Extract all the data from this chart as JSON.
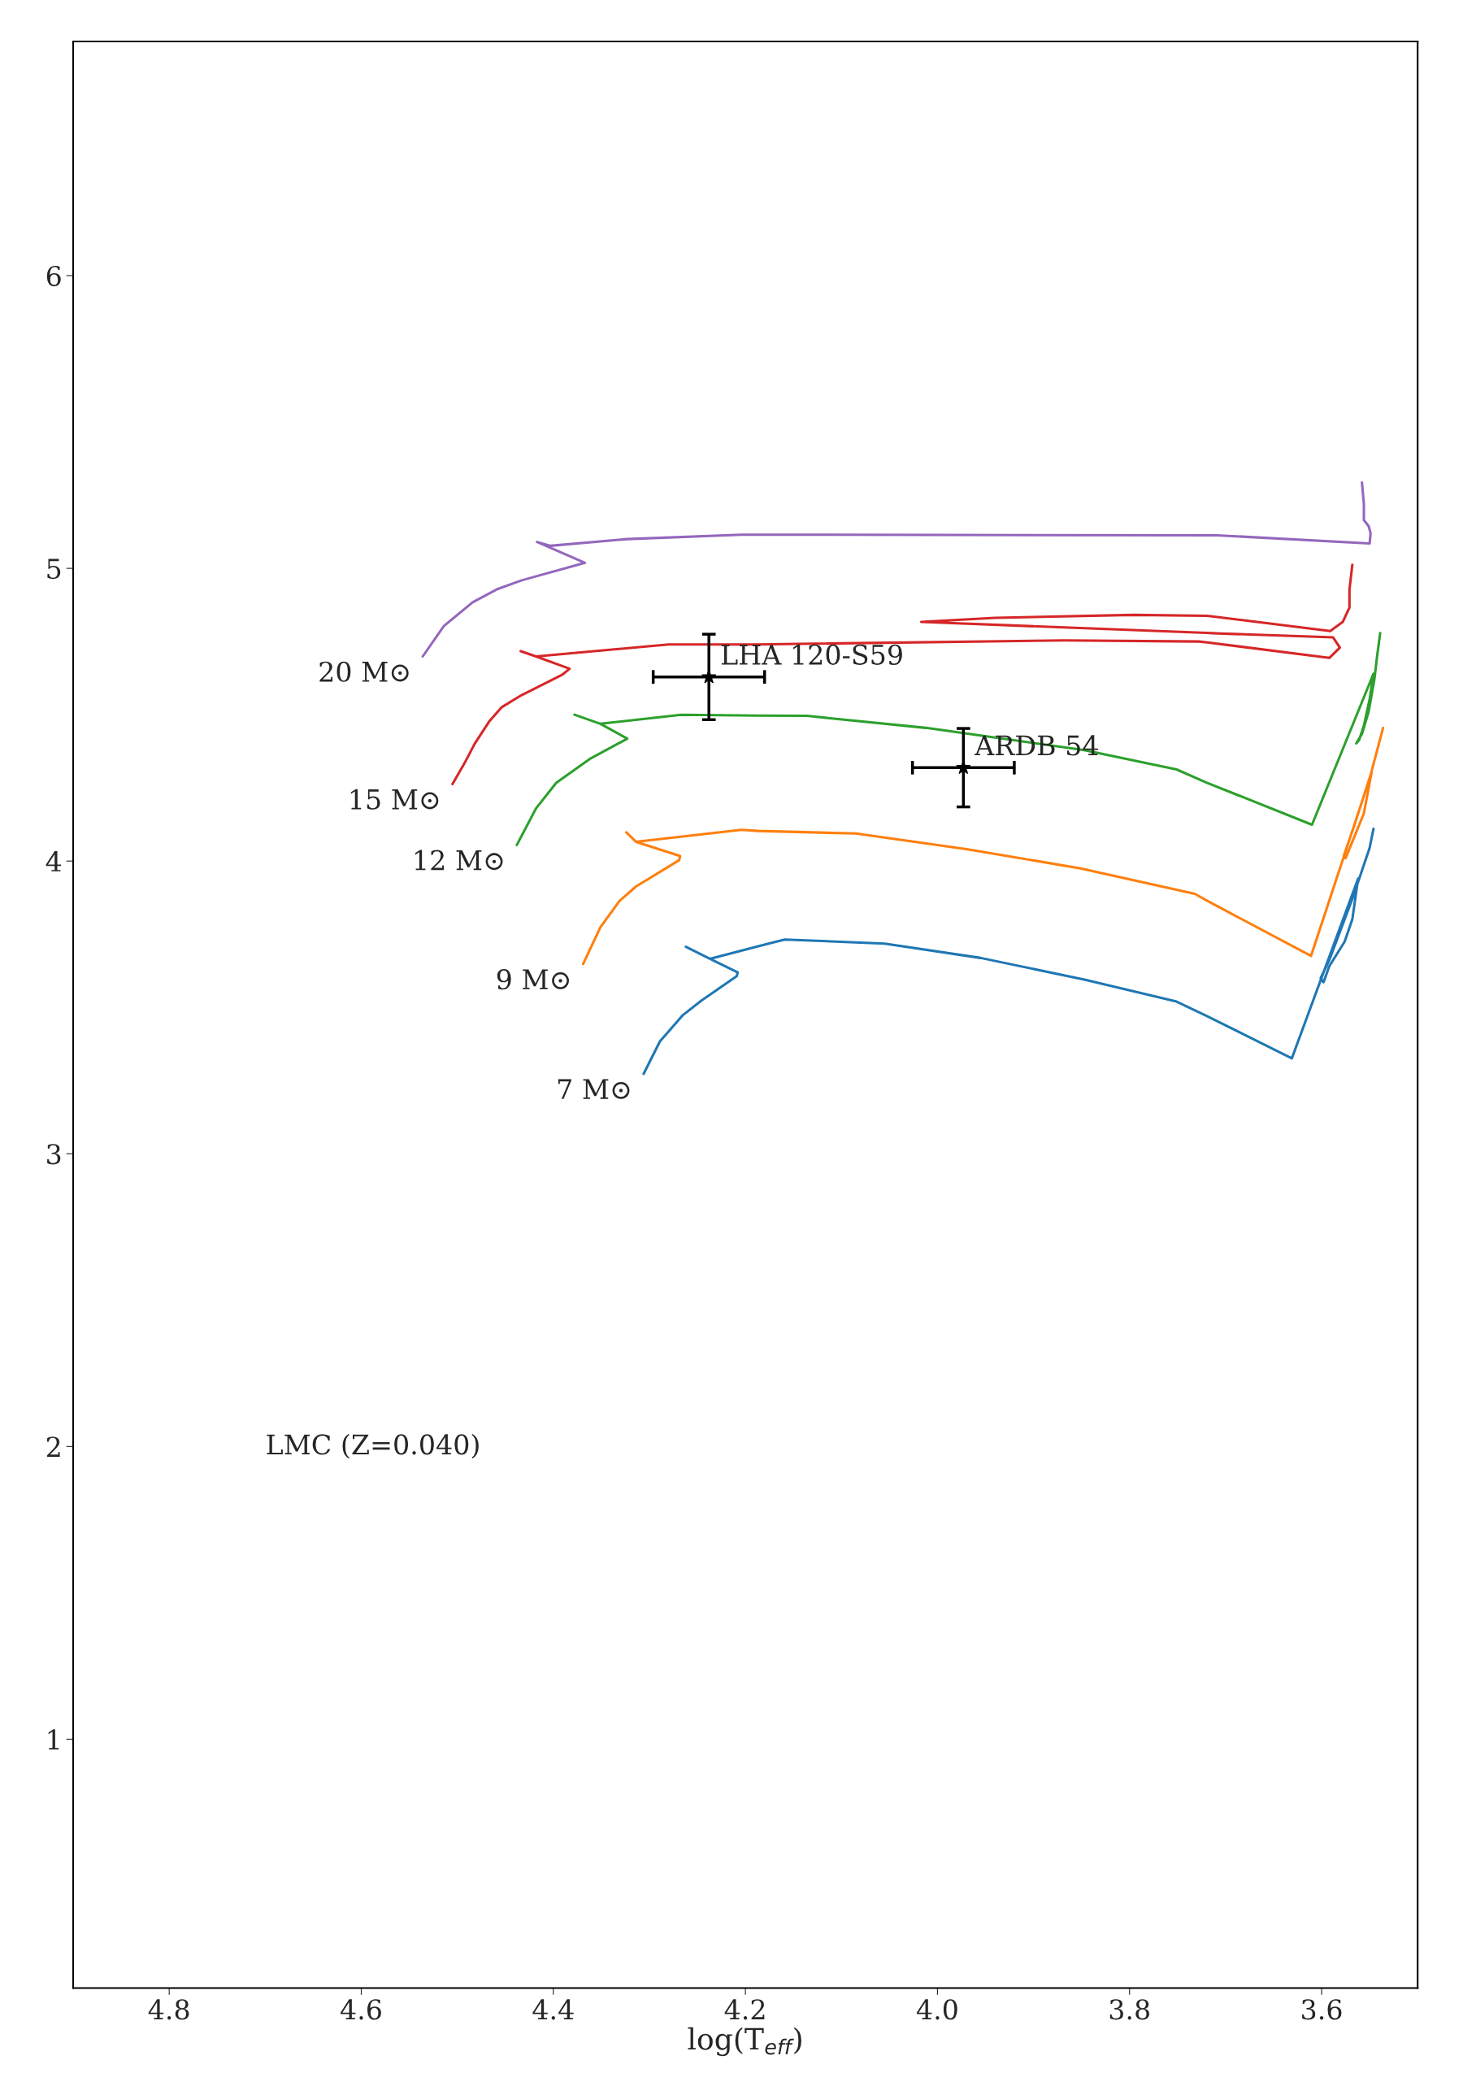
{
  "chart_data": {
    "type": "line",
    "xlabel": "log(T$_{eff}$)",
    "xlim": [
      4.9,
      3.5
    ],
    "ylim": [
      0.15,
      6.8
    ],
    "xticks": [
      4.8,
      4.6,
      4.4,
      4.2,
      {
        "value": 4,
        "label": "4.0"
      },
      3.8,
      3.6
    ],
    "yticks": [
      1,
      2,
      3,
      4,
      5,
      6
    ],
    "grid": false,
    "legend": false,
    "annotations": [
      "LMC (Z=0.040)"
    ],
    "series": [
      {
        "name": "7 M⊙",
        "color": "#1f77b4",
        "x": [
          4.306,
          4.289,
          4.265,
          4.246,
          4.209,
          4.208,
          4.237,
          4.262,
          4.237,
          4.176,
          4.159,
          4.055,
          3.955,
          3.847,
          3.751,
          3.719,
          3.631,
          3.562,
          3.568,
          3.576,
          3.592,
          3.598,
          3.601,
          3.592,
          3.568,
          3.55,
          3.546
        ],
        "values": [
          3.273,
          3.384,
          3.474,
          3.523,
          3.607,
          3.62,
          3.666,
          3.707,
          3.666,
          3.718,
          3.732,
          3.718,
          3.669,
          3.595,
          3.52,
          3.47,
          3.326,
          3.94,
          3.801,
          3.725,
          3.641,
          3.586,
          3.6,
          3.662,
          3.871,
          4.045,
          4.11
        ]
      },
      {
        "name": "9 M⊙",
        "color": "#ff7f0e",
        "x": [
          4.369,
          4.351,
          4.331,
          4.314,
          4.269,
          4.268,
          4.314,
          4.324,
          4.314,
          4.204,
          4.187,
          4.085,
          3.97,
          3.851,
          3.732,
          3.719,
          3.611,
          3.548,
          3.556,
          3.568,
          3.575,
          3.577,
          3.566,
          3.549,
          3.536
        ],
        "values": [
          3.648,
          3.774,
          3.864,
          3.913,
          4.003,
          4.017,
          4.066,
          4.098,
          4.066,
          4.107,
          4.103,
          4.094,
          4.041,
          3.975,
          3.888,
          3.864,
          3.676,
          4.302,
          4.163,
          4.066,
          4.01,
          4.017,
          4.121,
          4.294,
          4.455
        ]
      },
      {
        "name": "12 M⊙",
        "color": "#2ca02c",
        "x": [
          4.438,
          4.418,
          4.397,
          4.361,
          4.323,
          4.351,
          4.378,
          4.351,
          4.267,
          4.187,
          4.136,
          4.012,
          3.847,
          3.751,
          3.719,
          3.61,
          3.546,
          3.55,
          3.556,
          3.561,
          3.564,
          3.558,
          3.551,
          3.545,
          3.542,
          3.539
        ],
        "values": [
          4.055,
          4.18,
          4.267,
          4.351,
          4.418,
          4.469,
          4.5,
          4.469,
          4.5,
          4.497,
          4.496,
          4.455,
          4.379,
          4.313,
          4.267,
          4.124,
          4.64,
          4.553,
          4.462,
          4.413,
          4.402,
          4.434,
          4.511,
          4.622,
          4.706,
          4.779
        ]
      },
      {
        "name": "15 M⊙",
        "color": "#d62728",
        "x": [
          4.505,
          4.492,
          4.482,
          4.467,
          4.454,
          4.433,
          4.391,
          4.383,
          4.418,
          4.434,
          4.418,
          4.28,
          4.187,
          3.868,
          3.728,
          3.719,
          3.592,
          3.581,
          3.588,
          3.719,
          3.709,
          4.017,
          3.94,
          3.796,
          3.719,
          3.591,
          3.578,
          3.571,
          3.571,
          3.568
        ],
        "values": [
          4.263,
          4.337,
          4.4,
          4.476,
          4.525,
          4.567,
          4.636,
          4.657,
          4.699,
          4.717,
          4.699,
          4.74,
          4.74,
          4.754,
          4.75,
          4.747,
          4.694,
          4.729,
          4.764,
          4.779,
          4.778,
          4.817,
          4.831,
          4.841,
          4.838,
          4.786,
          4.817,
          4.866,
          4.928,
          5.012
        ]
      },
      {
        "name": "20 M⊙",
        "color": "#9467bd",
        "x": [
          4.536,
          4.514,
          4.484,
          4.459,
          4.433,
          4.367,
          4.417,
          4.403,
          4.323,
          4.204,
          3.709,
          3.55,
          3.549,
          3.551,
          3.556,
          3.556,
          3.558
        ],
        "values": [
          4.699,
          4.803,
          4.884,
          4.928,
          4.959,
          5.019,
          5.09,
          5.077,
          5.1,
          5.115,
          5.113,
          5.085,
          5.12,
          5.144,
          5.165,
          5.22,
          5.293
        ]
      },
      {
        "name": "LHA 120-S59",
        "type": "scatter",
        "marker": "star",
        "color": "#000000",
        "x": [
          4.238
        ],
        "values": [
          4.629
        ],
        "xerrors": [
          0.058
        ],
        "errors": [
          0.146
        ]
      },
      {
        "name": "ARDB 54",
        "type": "scatter",
        "marker": "star",
        "color": "#000000",
        "x": [
          3.973
        ],
        "values": [
          4.319
        ],
        "xerrors": [
          0.053
        ],
        "errors": [
          0.134
        ]
      }
    ]
  }
}
